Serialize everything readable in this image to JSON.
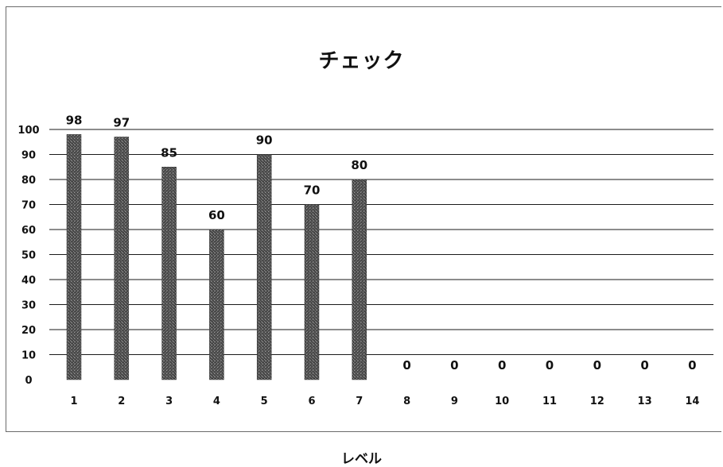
{
  "chart_data": {
    "type": "bar",
    "title": "チェック",
    "xlabel": "レベル",
    "ylabel": "",
    "categories": [
      "1",
      "2",
      "3",
      "4",
      "5",
      "6",
      "7",
      "8",
      "9",
      "10",
      "11",
      "12",
      "13",
      "14"
    ],
    "values": [
      98,
      97,
      85,
      60,
      90,
      70,
      80,
      0,
      0,
      0,
      0,
      0,
      0,
      0
    ],
    "ylim": [
      0,
      100
    ],
    "yticks": [
      "0",
      "10",
      "20",
      "30",
      "40",
      "50",
      "60",
      "70",
      "80",
      "90",
      "100"
    ],
    "grid": true,
    "legend": "none",
    "colors": {
      "bar": "#5a5a5a",
      "grid": "#1a1a1a",
      "text": "#111111"
    }
  }
}
